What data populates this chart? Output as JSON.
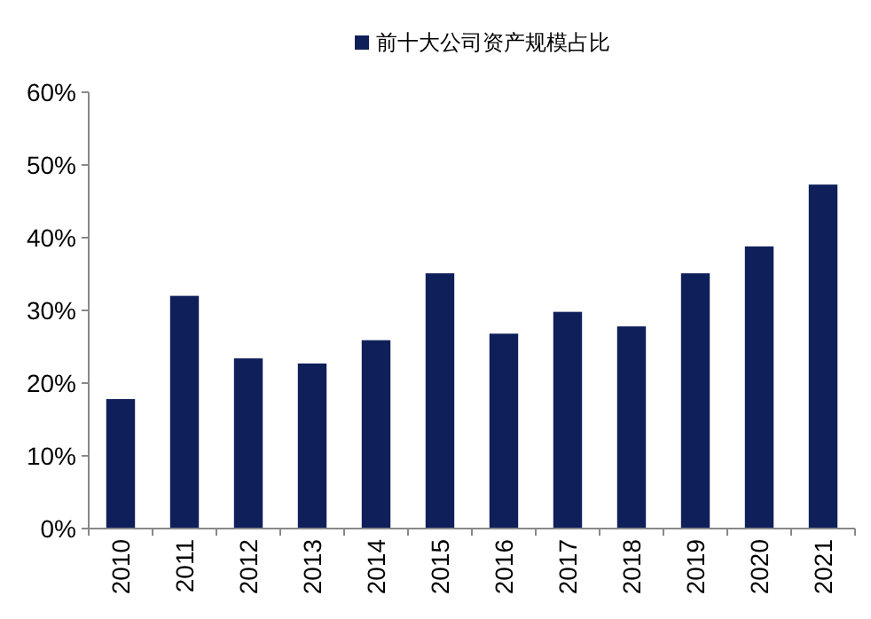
{
  "chart_data": {
    "type": "bar",
    "categories": [
      "2010",
      "2011",
      "2012",
      "2013",
      "2014",
      "2015",
      "2016",
      "2017",
      "2018",
      "2019",
      "2020",
      "2021"
    ],
    "series": [
      {
        "name": "前十大公司资产规模占比",
        "color": "#0f1f5a",
        "values": [
          17.8,
          32,
          23.4,
          22.7,
          25.9,
          35.1,
          26.8,
          29.8,
          27.8,
          35.1,
          38.8,
          47.3
        ]
      }
    ],
    "ylim": [
      0,
      60
    ],
    "yticks": [
      {
        "value": 0,
        "label": "0%"
      },
      {
        "value": 10,
        "label": "10%"
      },
      {
        "value": 20,
        "label": "20%"
      },
      {
        "value": 30,
        "label": "30%"
      },
      {
        "value": 40,
        "label": "40%"
      },
      {
        "value": 50,
        "label": "50%"
      },
      {
        "value": 60,
        "label": "60%"
      }
    ],
    "legend": "top",
    "grid": false
  }
}
